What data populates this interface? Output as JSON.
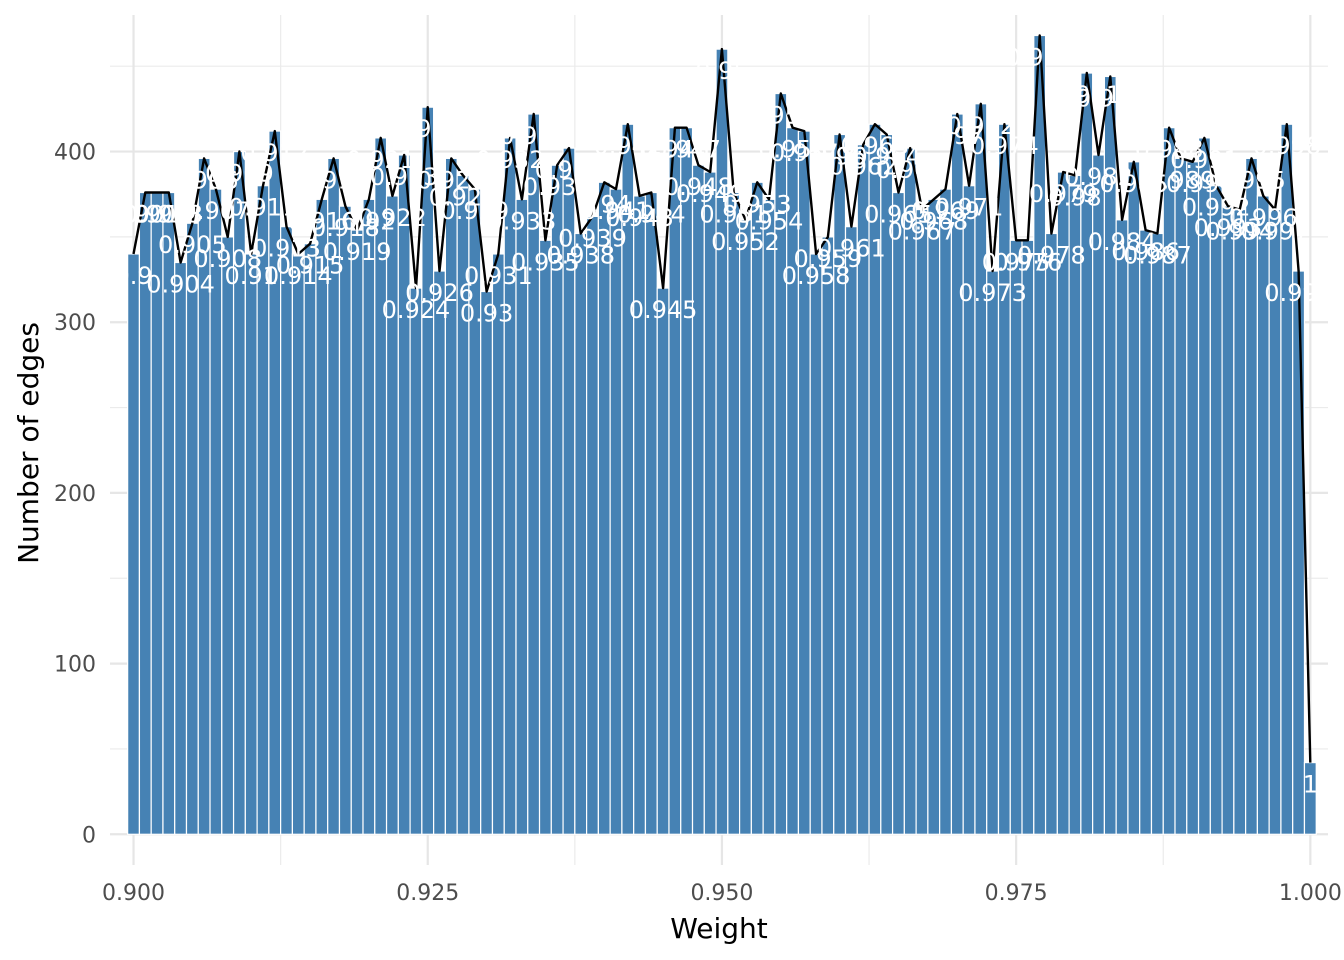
{
  "chart_data": {
    "type": "bar",
    "xlabel": "Weight",
    "ylabel": "Number of edges",
    "xlim": [
      0.898,
      1.0015
    ],
    "ylim": [
      -18,
      480
    ],
    "xticks": [
      0.9,
      0.925,
      0.95,
      0.975,
      1.0
    ],
    "xtick_labels": [
      "0.900",
      "0.925",
      "0.950",
      "0.975",
      "1.000"
    ],
    "yticks": [
      0,
      100,
      200,
      300,
      400
    ],
    "ytick_labels": [
      "0",
      "100",
      "200",
      "300",
      "400"
    ],
    "grid": true,
    "bar_color": "#4682b4",
    "line_color": "#000000",
    "label_color": "#ffffff",
    "x": [
      "0.9",
      "0.901",
      "0.902",
      "0.903",
      "0.904",
      "0.905",
      "0.906",
      "0.907",
      "0.908",
      "0.909",
      "0.91",
      "0.911",
      "0.912",
      "0.913",
      "0.914",
      "0.915",
      "0.916",
      "0.917",
      "0.918",
      "0.919",
      "0.92",
      "0.921",
      "0.922",
      "0.923",
      "0.924",
      "0.925",
      "0.926",
      "0.927",
      "0.928",
      "0.929",
      "0.93",
      "0.931",
      "0.932",
      "0.933",
      "0.934",
      "0.935",
      "0.936",
      "0.937",
      "0.938",
      "0.939",
      "0.94",
      "0.941",
      "0.942",
      "0.943",
      "0.944",
      "0.945",
      "0.946",
      "0.947",
      "0.948",
      "0.949",
      "0.95",
      "0.951",
      "0.952",
      "0.953",
      "0.954",
      "0.955",
      "0.956",
      "0.957",
      "0.958",
      "0.959",
      "0.96",
      "0.961",
      "0.962",
      "0.963",
      "0.964",
      "0.965",
      "0.966",
      "0.967",
      "0.968",
      "0.969",
      "0.97",
      "0.971",
      "0.972",
      "0.973",
      "0.974",
      "0.975",
      "0.976",
      "0.977",
      "0.978",
      "0.979",
      "0.98",
      "0.981",
      "0.982",
      "0.983",
      "0.984",
      "0.985",
      "0.986",
      "0.987",
      "0.988",
      "0.989",
      "0.99",
      "0.991",
      "0.992",
      "0.993",
      "0.994",
      "0.995",
      "0.996",
      "0.997",
      "0.998",
      "0.999",
      "1"
    ],
    "values": [
      340,
      376,
      376,
      376,
      335,
      358,
      396,
      378,
      350,
      400,
      340,
      380,
      412,
      356,
      340,
      346,
      372,
      396,
      368,
      354,
      372,
      408,
      374,
      398,
      320,
      426,
      330,
      396,
      386,
      378,
      318,
      340,
      408,
      372,
      422,
      348,
      392,
      402,
      352,
      362,
      382,
      378,
      416,
      374,
      376,
      320,
      414,
      414,
      392,
      388,
      460,
      376,
      360,
      382,
      372,
      434,
      414,
      412,
      340,
      350,
      410,
      356,
      404,
      416,
      410,
      376,
      402,
      366,
      372,
      378,
      422,
      380,
      428,
      330,
      416,
      348,
      348,
      468,
      352,
      388,
      386,
      446,
      398,
      444,
      360,
      394,
      354,
      352,
      414,
      396,
      394,
      408,
      380,
      368,
      366,
      396,
      374,
      366,
      416,
      330,
      42
    ]
  }
}
